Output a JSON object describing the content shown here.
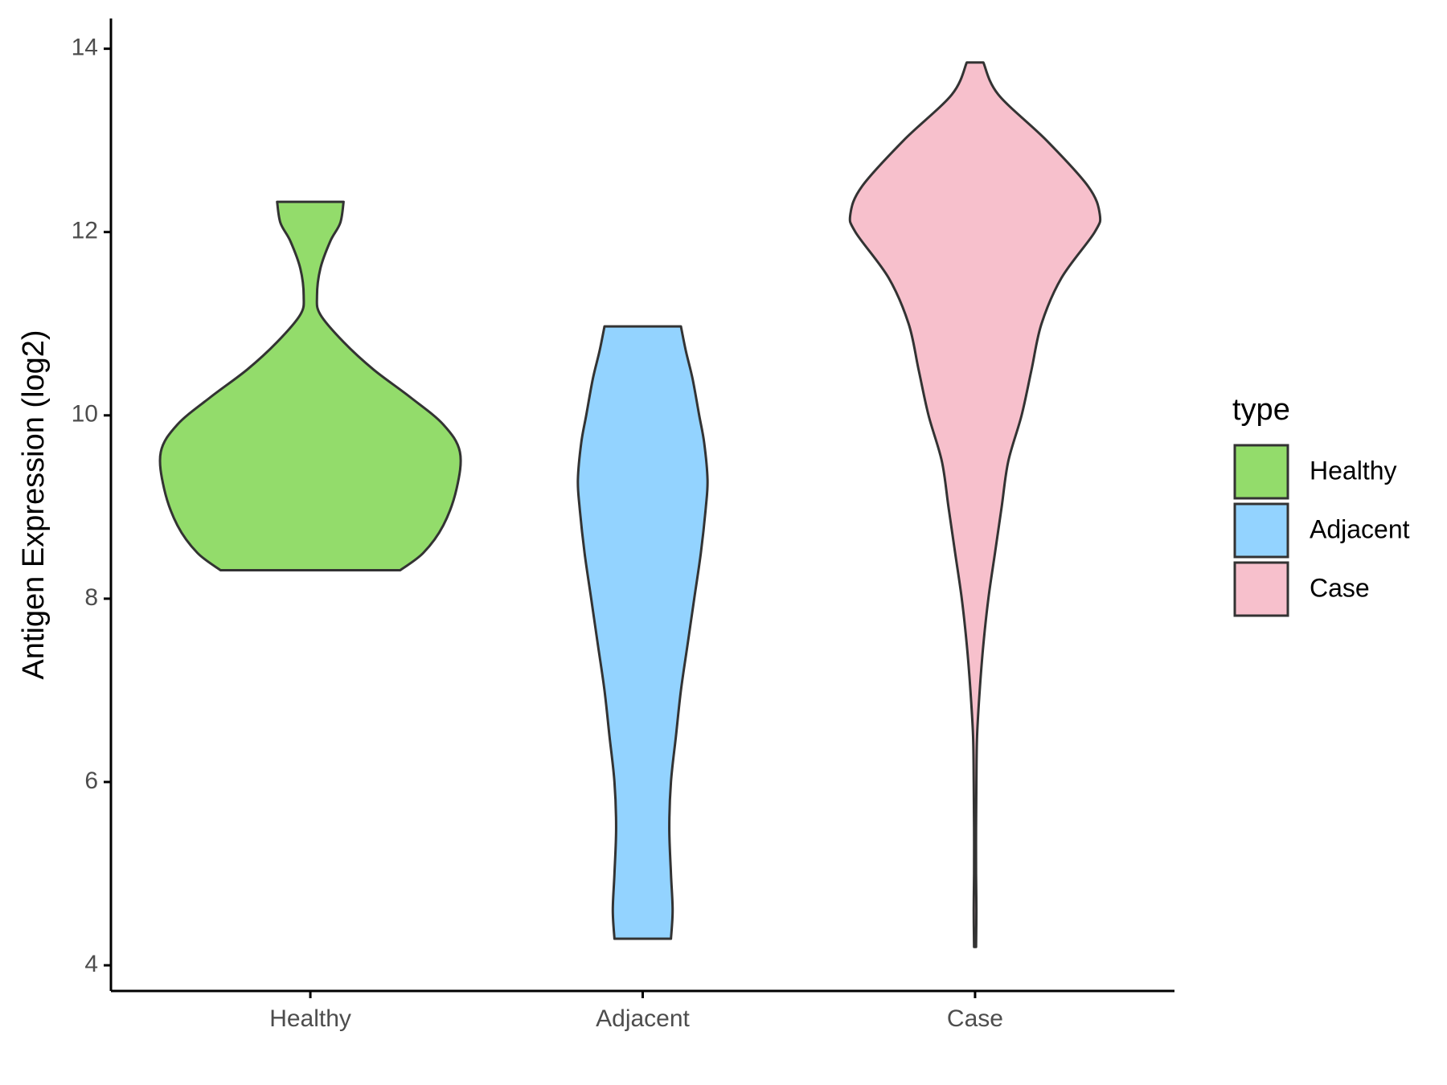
{
  "chart_data": {
    "type": "violin",
    "y_label": "Antigen Expression (log2)",
    "legend_title": "type",
    "legend_position": "right",
    "categories": [
      "Healthy",
      "Adjacent",
      "Case"
    ],
    "ylim": [
      3.72,
      14.33
    ],
    "yticks": [
      4,
      6,
      8,
      10,
      12,
      14
    ],
    "series": [
      {
        "name": "Healthy",
        "color": "#93dc6b",
        "y": [
          8.31,
          8.5,
          8.8,
          9.2,
          9.6,
          9.9,
          10.2,
          10.5,
          10.8,
          11.1,
          11.3,
          11.6,
          11.9,
          12.1,
          12.33
        ],
        "width": [
          0.27,
          0.34,
          0.4,
          0.44,
          0.45,
          0.4,
          0.3,
          0.19,
          0.1,
          0.03,
          0.02,
          0.03,
          0.06,
          0.09,
          0.1
        ]
      },
      {
        "name": "Adjacent",
        "color": "#93d3ff",
        "y": [
          4.29,
          4.6,
          5.0,
          5.5,
          6.0,
          6.5,
          7.0,
          7.5,
          8.0,
          8.5,
          9.0,
          9.3,
          9.7,
          10.0,
          10.4,
          10.7,
          10.97
        ],
        "width": [
          0.085,
          0.09,
          0.085,
          0.08,
          0.085,
          0.1,
          0.115,
          0.135,
          0.155,
          0.175,
          0.19,
          0.195,
          0.185,
          0.17,
          0.15,
          0.13,
          0.115
        ]
      },
      {
        "name": "Case",
        "color": "#f7c0cc",
        "y": [
          4.2,
          4.6,
          5.0,
          5.5,
          6.0,
          6.5,
          7.0,
          7.5,
          8.0,
          8.5,
          9.0,
          9.5,
          10.0,
          10.5,
          11.0,
          11.5,
          12.0,
          12.2,
          12.5,
          13.0,
          13.5,
          13.85
        ],
        "width": [
          0.003,
          0.004,
          0.003,
          0.003,
          0.004,
          0.006,
          0.014,
          0.025,
          0.04,
          0.06,
          0.08,
          0.1,
          0.14,
          0.17,
          0.2,
          0.26,
          0.36,
          0.375,
          0.34,
          0.215,
          0.07,
          0.025
        ]
      }
    ]
  }
}
